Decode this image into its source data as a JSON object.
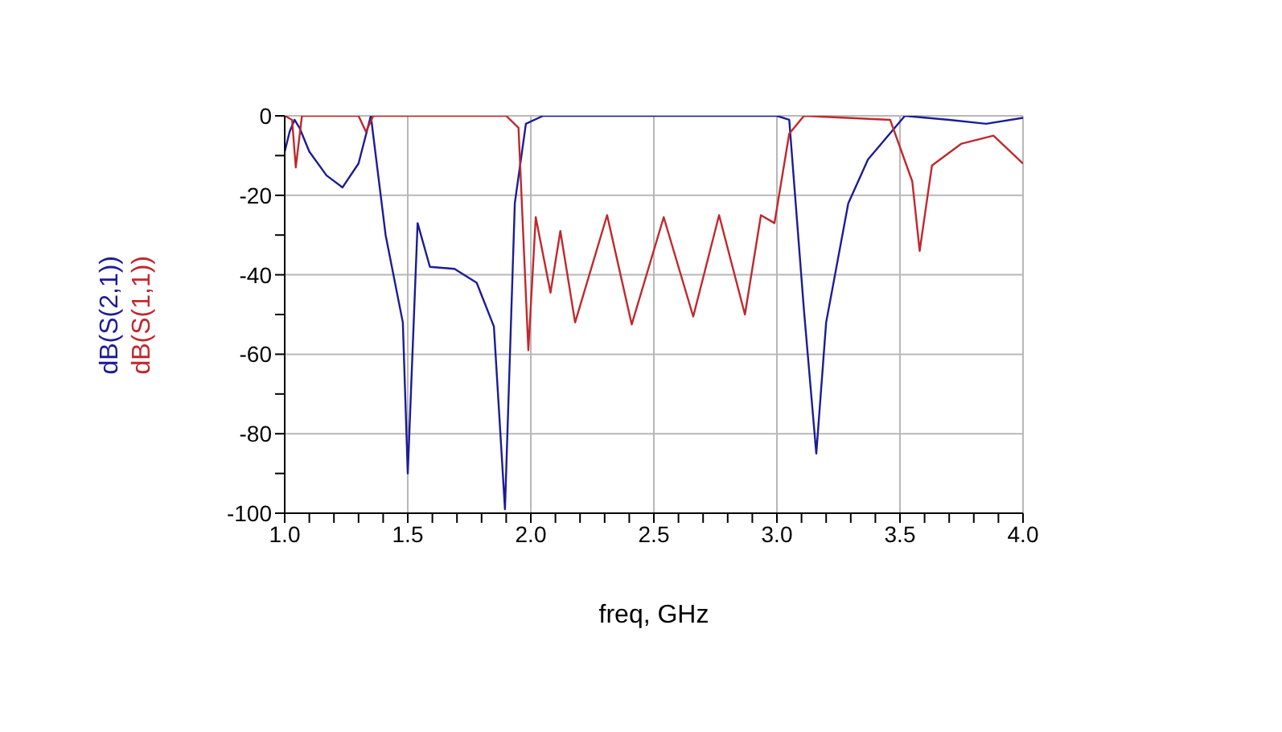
{
  "chart_data": {
    "type": "line",
    "xlabel": "freq, GHz",
    "legend": "left",
    "grid": true,
    "marker": "none",
    "line_style": "solid",
    "xlim": [
      1,
      4
    ],
    "ylim": [
      -100,
      0
    ],
    "xticks": [
      {
        "value": 1,
        "label": "1.0"
      },
      {
        "value": 1.1,
        "label": null
      },
      {
        "value": 1.2,
        "label": null
      },
      {
        "value": 1.3,
        "label": null
      },
      {
        "value": 1.4,
        "label": null
      },
      {
        "value": 1.5,
        "label": "1.5"
      },
      {
        "value": 1.6,
        "label": null
      },
      {
        "value": 1.7,
        "label": null
      },
      {
        "value": 1.8,
        "label": null
      },
      {
        "value": 1.9,
        "label": null
      },
      {
        "value": 2,
        "label": "2.0"
      },
      {
        "value": 2.1,
        "label": null
      },
      {
        "value": 2.2,
        "label": null
      },
      {
        "value": 2.3,
        "label": null
      },
      {
        "value": 2.4,
        "label": null
      },
      {
        "value": 2.5,
        "label": "2.5"
      },
      {
        "value": 2.6,
        "label": null
      },
      {
        "value": 2.7,
        "label": null
      },
      {
        "value": 2.8,
        "label": null
      },
      {
        "value": 2.9,
        "label": null
      },
      {
        "value": 3,
        "label": "3.0"
      },
      {
        "value": 3.1,
        "label": null
      },
      {
        "value": 3.2,
        "label": null
      },
      {
        "value": 3.3,
        "label": null
      },
      {
        "value": 3.4,
        "label": null
      },
      {
        "value": 3.5,
        "label": "3.5"
      },
      {
        "value": 3.6,
        "label": null
      },
      {
        "value": 3.7,
        "label": null
      },
      {
        "value": 3.8,
        "label": null
      },
      {
        "value": 3.9,
        "label": null
      },
      {
        "value": 4,
        "label": "4.0"
      }
    ],
    "yticks": [
      -100,
      {
        "value": -90,
        "label": null
      },
      -80,
      {
        "value": -70,
        "label": null
      },
      -60,
      {
        "value": -50,
        "label": null
      },
      -40,
      {
        "value": -30,
        "label": null
      },
      -20,
      {
        "value": -10,
        "label": null
      },
      0
    ],
    "series": [
      {
        "name": "dB(S(2,1))",
        "color": "#1c1c96",
        "x": [
          1,
          1.02,
          1.04,
          1.06,
          1.1,
          1.17,
          1.235,
          1.3,
          1.35,
          1.41,
          1.48,
          1.5,
          1.54,
          1.59,
          1.69,
          1.78,
          1.85,
          1.895,
          1.935,
          1.98,
          2.05,
          2.5,
          3.0,
          3.05,
          3.11,
          3.16,
          3.2,
          3.29,
          3.37,
          3.52,
          3.7,
          3.85,
          4
        ],
        "values": [
          -9,
          -4,
          -1,
          -3,
          -9,
          -15,
          -18,
          -12,
          0,
          -30,
          -52,
          -90,
          -27,
          -38,
          -38.5,
          -42,
          -53,
          -99,
          -22,
          -2,
          0,
          0,
          0,
          -1,
          -49,
          -85,
          -52,
          -22,
          -11,
          0,
          -1,
          -2,
          -0.5
        ]
      },
      {
        "name": "dB(S(1,1))",
        "color": "#c0282d",
        "x": [
          1,
          1.03,
          1.045,
          1.07,
          1.3,
          1.33,
          1.36,
          1.9,
          1.95,
          1.99,
          2.02,
          2.08,
          2.12,
          2.18,
          2.31,
          2.41,
          2.54,
          2.66,
          2.765,
          2.87,
          2.935,
          2.99,
          3.05,
          3.11,
          3.46,
          3.55,
          3.58,
          3.63,
          3.75,
          3.88,
          4
        ],
        "values": [
          0,
          -1,
          -13,
          0,
          0,
          -4,
          0,
          0,
          -3,
          -59,
          -25.5,
          -44.5,
          -29,
          -52,
          -25,
          -52.5,
          -25.5,
          -50.5,
          -25,
          -50,
          -25,
          -27,
          -4.5,
          0,
          -1,
          -16.5,
          -34,
          -12.5,
          -7,
          -5,
          -12
        ]
      }
    ]
  }
}
